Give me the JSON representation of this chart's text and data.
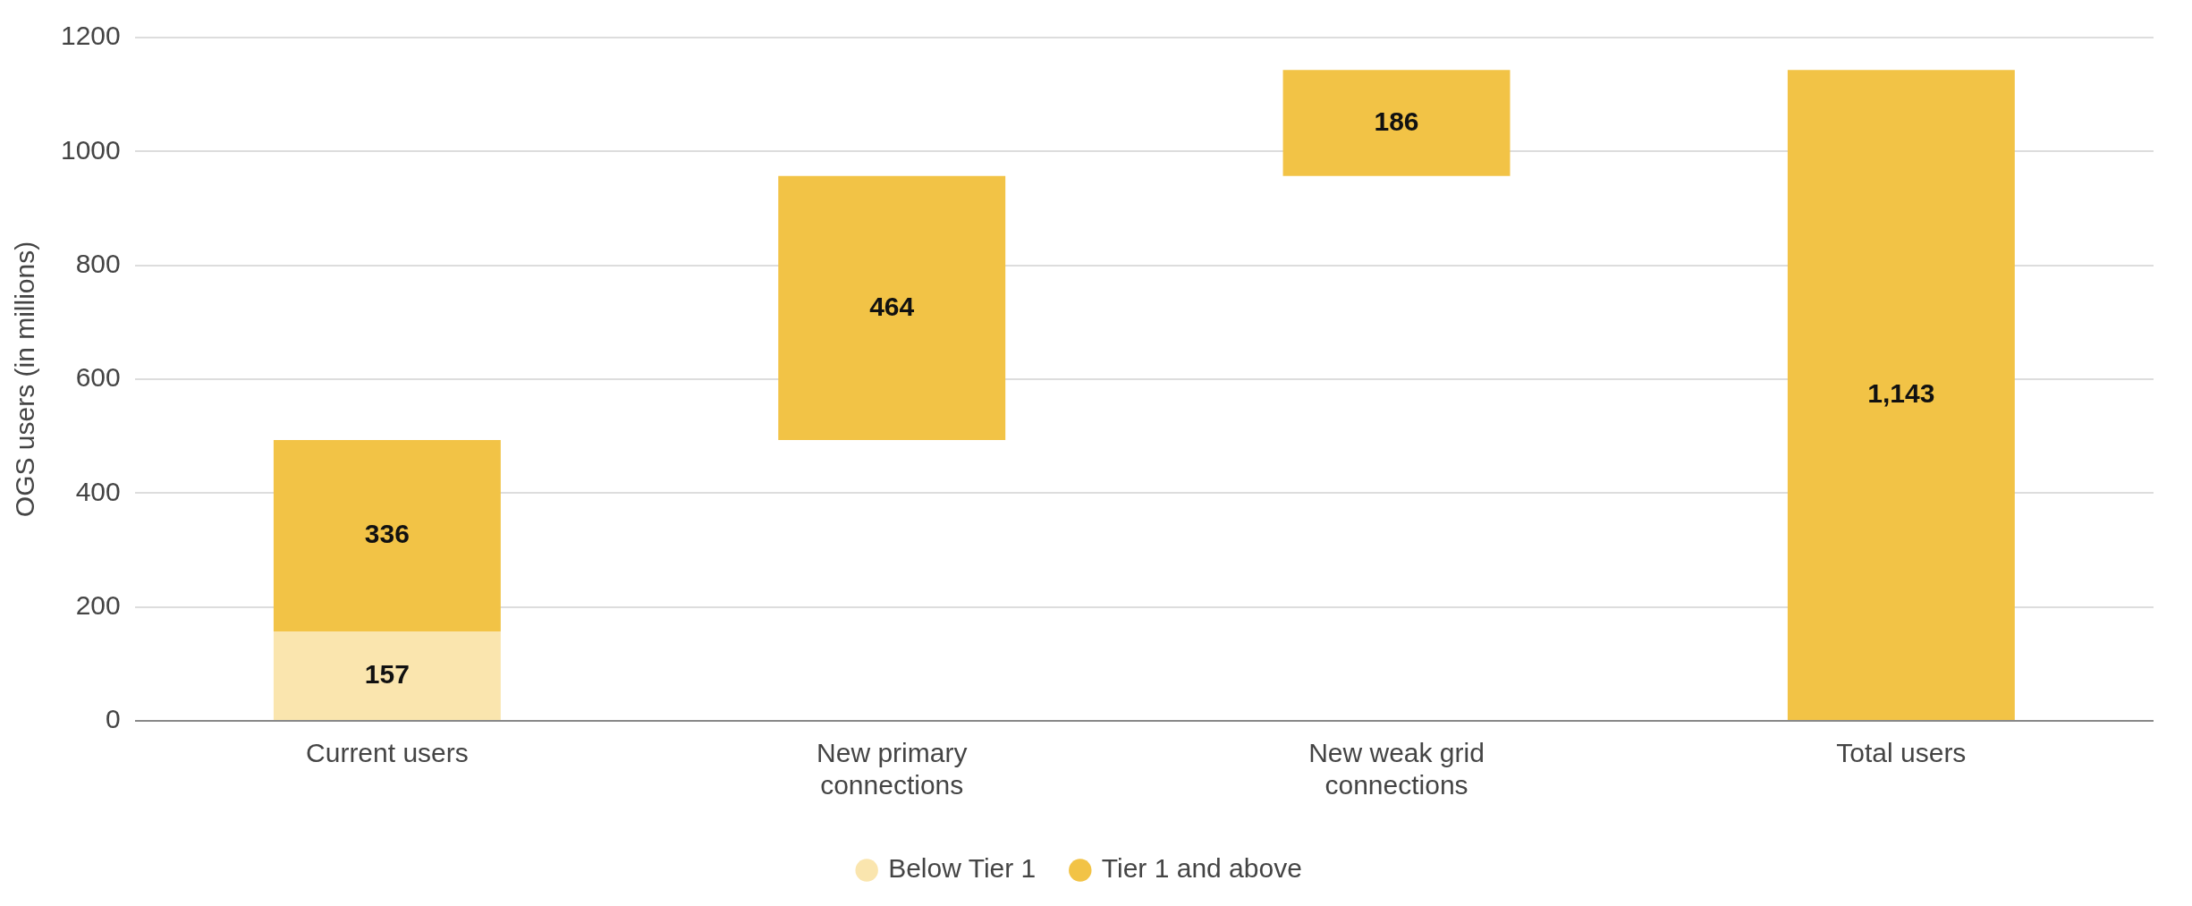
{
  "chart_data": {
    "type": "bar",
    "ylabel": "OGS users (in millions)",
    "categories": [
      "Current users",
      "New primary connections",
      "New weak grid connections",
      "Total users"
    ],
    "series": [
      {
        "name": "Below Tier 1",
        "color": "#fae5ae",
        "values": [
          157,
          null,
          null,
          null
        ],
        "value_labels": [
          "157",
          null,
          null,
          null
        ]
      },
      {
        "name": "Tier 1 and above",
        "color": "#f2c346",
        "values": [
          336,
          464,
          186,
          1143
        ],
        "base": [
          157,
          493,
          957,
          0
        ],
        "value_labels": [
          "336",
          "464",
          "186",
          "1,143"
        ]
      }
    ],
    "ylim": [
      0,
      1200
    ],
    "yticks": [
      0,
      200,
      400,
      600,
      800,
      1000,
      1200
    ],
    "grid": "y",
    "legend": "bottom"
  }
}
